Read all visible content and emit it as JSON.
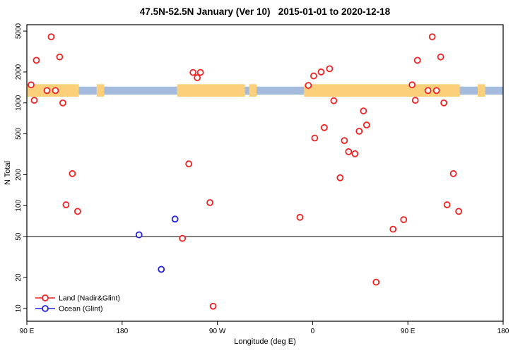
{
  "chart_data": {
    "type": "scatter",
    "title": "47.5N-52.5N January (Ver 10)   2015-01-01 to 2020-12-18",
    "xlabel": "Longitude (deg E)",
    "ylabel": "N Total",
    "x_axis": {
      "min": 90,
      "max": 540,
      "ticks": [
        {
          "pos": 90,
          "label": "90 E"
        },
        {
          "pos": 180,
          "label": "180"
        },
        {
          "pos": 270,
          "label": "90 W"
        },
        {
          "pos": 360,
          "label": "0"
        },
        {
          "pos": 450,
          "label": "90 E"
        },
        {
          "pos": 540,
          "label": "180"
        }
      ],
      "note": "longitude increases eastward from 90E; data in 90E-180E plotted twice (wrap)"
    },
    "y_axis": {
      "scale": "log",
      "min": 7.5,
      "max": 5770,
      "ticks": [
        10,
        20,
        50,
        100,
        200,
        500,
        1000,
        2000,
        5000
      ]
    },
    "reference_line_y": 50,
    "map_band": {
      "land_y": [
        1150,
        1520
      ],
      "ocean_y": [
        1205,
        1440
      ],
      "land_color": "#fcd07a",
      "ocean_color": "#a4bbde",
      "segments": [
        {
          "from": 90,
          "to": 139,
          "type": "land"
        },
        {
          "from": 139,
          "to": 156,
          "type": "ocean"
        },
        {
          "from": 156,
          "to": 163,
          "type": "land"
        },
        {
          "from": 163,
          "to": 232,
          "type": "ocean"
        },
        {
          "from": 232,
          "to": 296,
          "type": "land"
        },
        {
          "from": 296,
          "to": 300,
          "type": "ocean"
        },
        {
          "from": 300,
          "to": 307,
          "type": "land"
        },
        {
          "from": 307,
          "to": 352,
          "type": "ocean"
        },
        {
          "from": 352,
          "to": 499,
          "type": "land"
        },
        {
          "from": 499,
          "to": 516,
          "type": "ocean"
        },
        {
          "from": 516,
          "to": 523,
          "type": "land"
        },
        {
          "from": 523,
          "to": 540,
          "type": "ocean"
        }
      ]
    },
    "series": [
      {
        "name": "Land (Nadir&Glint)",
        "color": "#ee2222",
        "marker": "open-circle",
        "points": [
          [
            94,
            1500
          ],
          [
            99,
            2600
          ],
          [
            97,
            1060
          ],
          [
            113,
            4400
          ],
          [
            121,
            2800
          ],
          [
            124,
            1000
          ],
          [
            109,
            1320
          ],
          [
            117,
            1320
          ],
          [
            133,
            205
          ],
          [
            127,
            102
          ],
          [
            138,
            88
          ],
          [
            247,
            1980
          ],
          [
            254,
            1980
          ],
          [
            251,
            1760
          ],
          [
            243,
            255
          ],
          [
            237,
            48
          ],
          [
            263,
            107
          ],
          [
            266,
            10.5
          ],
          [
            348,
            77
          ],
          [
            356,
            1480
          ],
          [
            361,
            1830
          ],
          [
            368,
            2000
          ],
          [
            376,
            2150
          ],
          [
            362,
            455
          ],
          [
            371,
            575
          ],
          [
            380,
            1050
          ],
          [
            386,
            187
          ],
          [
            390,
            430
          ],
          [
            394,
            335
          ],
          [
            400,
            320
          ],
          [
            404,
            530
          ],
          [
            408,
            835
          ],
          [
            411,
            610
          ],
          [
            420,
            18
          ],
          [
            436,
            59
          ],
          [
            446,
            73
          ],
          [
            454,
            1500
          ],
          [
            459,
            2600
          ],
          [
            457,
            1060
          ],
          [
            473,
            4400
          ],
          [
            481,
            2800
          ],
          [
            484,
            1000
          ],
          [
            469,
            1320
          ],
          [
            477,
            1320
          ],
          [
            493,
            205
          ],
          [
            487,
            102
          ],
          [
            498,
            88
          ]
        ]
      },
      {
        "name": "Ocean (Glint)",
        "color": "#2222dd",
        "marker": "open-circle",
        "points": [
          [
            196,
            52
          ],
          [
            217,
            24
          ],
          [
            230,
            74
          ]
        ]
      }
    ],
    "legend_position": "bottom-left"
  }
}
